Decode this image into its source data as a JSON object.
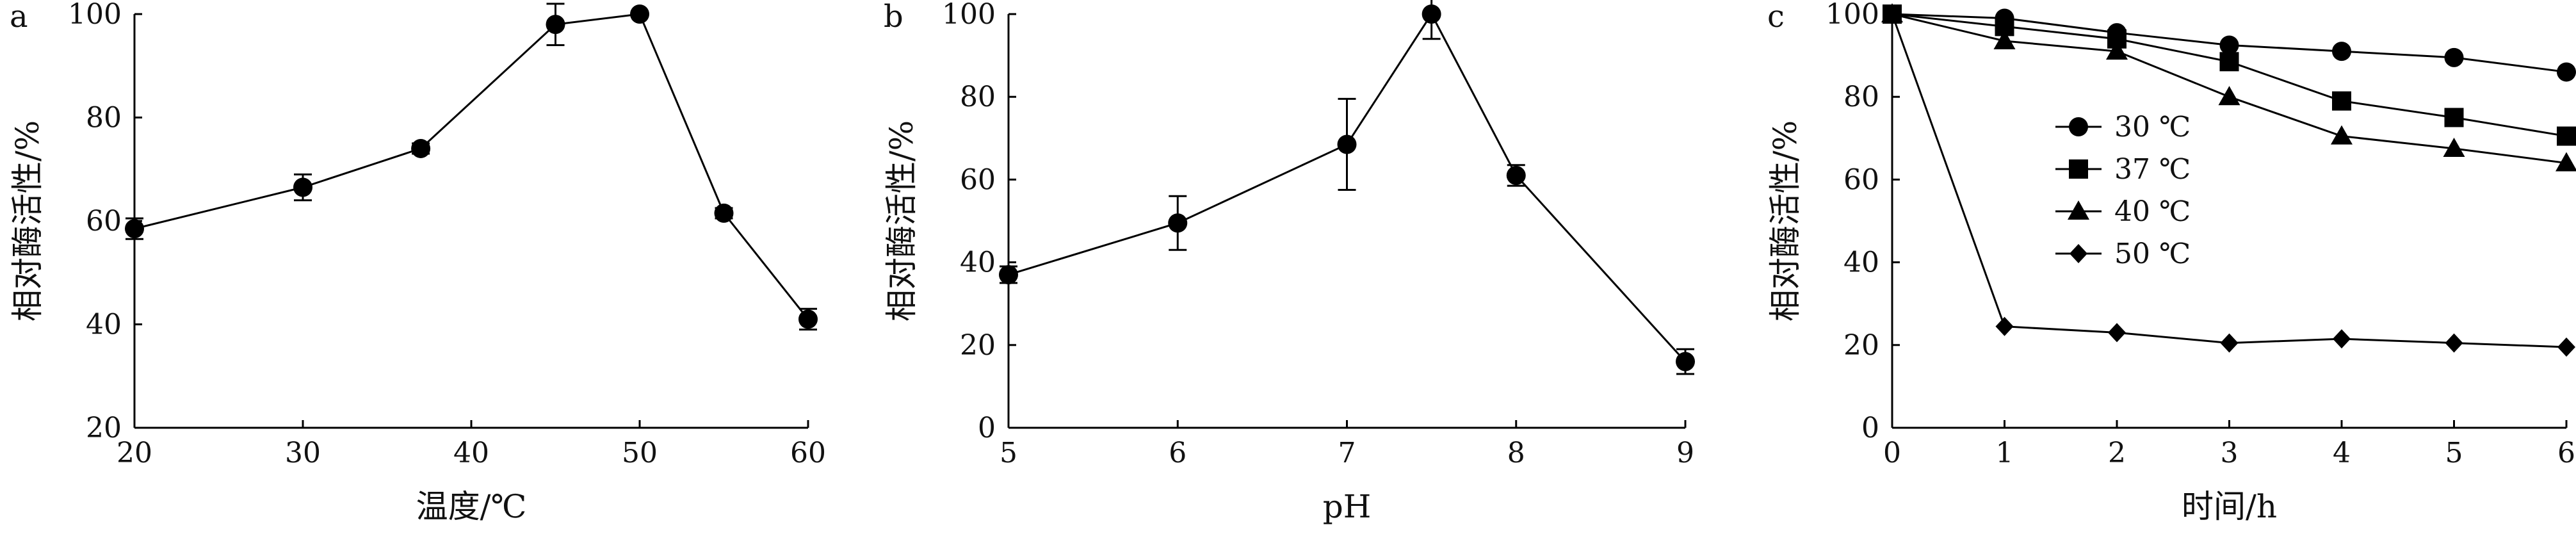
{
  "chart_data": [
    {
      "type": "line",
      "panel": "a",
      "xlabel": "温度/℃",
      "ylabel": "相对酶活性/%",
      "xlim": [
        20,
        60
      ],
      "ylim": [
        20,
        100
      ],
      "xticks": [
        20,
        30,
        40,
        50,
        60
      ],
      "yticks": [
        20,
        40,
        60,
        80,
        100
      ],
      "grid": false,
      "series": [
        {
          "marker": "circle",
          "x": [
            20,
            30,
            37,
            45,
            50,
            55,
            60
          ],
          "y": [
            58.5,
            66.5,
            74,
            98,
            100,
            61.5,
            41
          ],
          "err": [
            2,
            2.5,
            1,
            4,
            0.5,
            1,
            2
          ]
        }
      ]
    },
    {
      "type": "line",
      "panel": "b",
      "xlabel": "pH",
      "ylabel": "相对酶活性/%",
      "xlim": [
        5,
        9
      ],
      "ylim": [
        0,
        100
      ],
      "xticks": [
        5,
        6,
        7,
        8,
        9
      ],
      "yticks": [
        0,
        20,
        40,
        60,
        80,
        100
      ],
      "grid": false,
      "series": [
        {
          "marker": "circle",
          "x": [
            5,
            6,
            7,
            7.5,
            8,
            9
          ],
          "y": [
            37,
            49.5,
            68.5,
            100,
            61,
            16
          ],
          "err": [
            2,
            6.5,
            11,
            6,
            2.5,
            3
          ]
        }
      ]
    },
    {
      "type": "line",
      "panel": "c",
      "xlabel": "时间/h",
      "ylabel": "相对酶活性/%",
      "xlim": [
        0,
        6
      ],
      "ylim": [
        0,
        100
      ],
      "xticks": [
        0,
        1,
        2,
        3,
        4,
        5,
        6
      ],
      "yticks": [
        0,
        20,
        40,
        60,
        80,
        100
      ],
      "grid": false,
      "legend_position": "center-left",
      "series": [
        {
          "name": "30 ℃",
          "marker": "circle",
          "x": [
            0,
            1,
            2,
            3,
            4,
            5,
            6
          ],
          "y": [
            100,
            99,
            95.5,
            92.5,
            91,
            89.5,
            86
          ]
        },
        {
          "name": "37 ℃",
          "marker": "square",
          "x": [
            0,
            1,
            2,
            3,
            4,
            5,
            6
          ],
          "y": [
            100,
            97,
            94,
            88.5,
            79,
            75,
            70.5
          ]
        },
        {
          "name": "40 ℃",
          "marker": "triangle",
          "x": [
            0,
            1,
            2,
            3,
            4,
            5,
            6
          ],
          "y": [
            100,
            93.5,
            91,
            80,
            70.5,
            67.5,
            64
          ]
        },
        {
          "name": "50 ℃",
          "marker": "diamond",
          "x": [
            0,
            1,
            2,
            3,
            4,
            5,
            6
          ],
          "y": [
            100,
            24.5,
            23,
            20.5,
            21.5,
            20.5,
            19.5
          ]
        }
      ]
    }
  ]
}
